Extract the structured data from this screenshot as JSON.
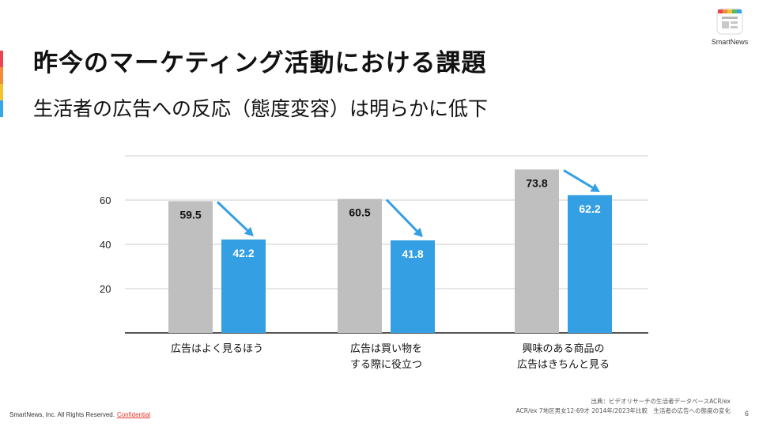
{
  "slide": {
    "title": "昨今のマーケティング活動における課題",
    "subtitle": "生活者の広告への反応（態度変容）は明らかに低下",
    "page_number": "6",
    "accent_colors": [
      "#e8454f",
      "#f08c3a",
      "#f2c230",
      "#35a7e8"
    ]
  },
  "logo": {
    "text": "SmartNews",
    "icon": "smartnews-logo-icon"
  },
  "source": {
    "line1": "出典：ビデオリサーチの生活者データベースACR/ex",
    "line2": "ACR/ex 7地区男女12-69才 2014年/2023年比較　生活者の広告への態度の変化"
  },
  "footer": {
    "copyright": "SmartNews, Inc. All Rights Reserved.",
    "confidential": "Confidential"
  },
  "chart_data": {
    "type": "bar",
    "categories": [
      [
        "広告はよく見るほう"
      ],
      [
        "広告は買い物を",
        "する際に役立つ"
      ],
      [
        "興味のある商品の",
        "広告はきちんと見る"
      ]
    ],
    "series": [
      {
        "name": "2014",
        "color": "#bfbfbf",
        "label_color": "#111111",
        "values": [
          59.5,
          60.5,
          73.8
        ],
        "labels": [
          "59.5",
          "60.5",
          "73.8"
        ]
      },
      {
        "name": "2023",
        "color": "#349fe3",
        "label_color": "#ffffff",
        "values": [
          42.2,
          41.8,
          62.2
        ],
        "labels": [
          "42.2",
          "41.8",
          "62.2"
        ]
      }
    ],
    "yticks": [
      20,
      40,
      60
    ],
    "ytick_labels": [
      "20",
      "40",
      "60"
    ],
    "ylim": [
      0,
      80
    ],
    "grid": true,
    "arrow_color": "#349fe3",
    "title": "",
    "xlabel": "",
    "ylabel": ""
  }
}
